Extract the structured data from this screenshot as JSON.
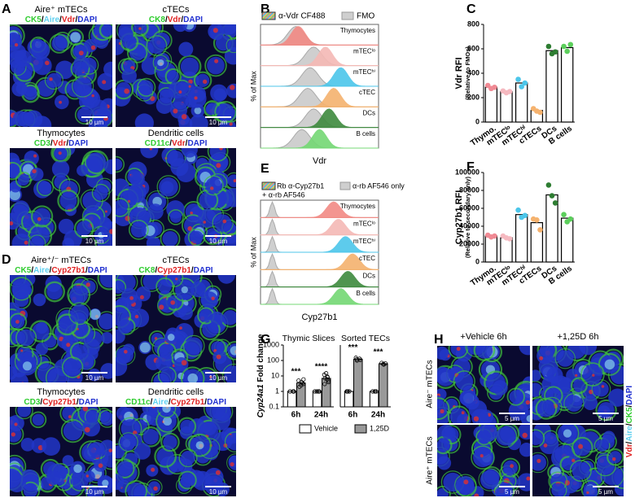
{
  "figure": {
    "panel_labels": [
      "A",
      "B",
      "C",
      "D",
      "E",
      "F",
      "G",
      "H"
    ],
    "panel_a": {
      "sep": "/",
      "images": [
        {
          "title": "Aire⁺ mTECs",
          "stains": [
            {
              "text": "CK5",
              "color": "#2ecc2e"
            },
            {
              "text": "Aire",
              "color": "#5fd0f0"
            },
            {
              "text": "Vdr",
              "color": "#e02020"
            },
            {
              "text": "DAPI",
              "color": "#2030d0"
            }
          ],
          "scale": "10 µm"
        },
        {
          "title": "cTECs",
          "stains": [
            {
              "text": "CK8",
              "color": "#2ecc2e"
            },
            {
              "text": "Vdr",
              "color": "#e02020"
            },
            {
              "text": "DAPI",
              "color": "#2030d0"
            }
          ],
          "scale": "10 µm"
        },
        {
          "title": "Thymocytes",
          "stains": [
            {
              "text": "CD3",
              "color": "#2ecc2e"
            },
            {
              "text": "Vdr",
              "color": "#e02020"
            },
            {
              "text": "DAPI",
              "color": "#2030d0"
            }
          ],
          "scale": "10 µm"
        },
        {
          "title": "Dendritic cells",
          "stains": [
            {
              "text": "CD11c",
              "color": "#2ecc2e"
            },
            {
              "text": "Vdr",
              "color": "#e02020"
            },
            {
              "text": "DAPI",
              "color": "#2030d0"
            }
          ],
          "scale": "10 µm"
        }
      ]
    },
    "panel_d": {
      "sep": "/",
      "images": [
        {
          "title": "Aire⁺/⁻ mTECs",
          "stains": [
            {
              "text": "CK5",
              "color": "#2ecc2e"
            },
            {
              "text": "Aire",
              "color": "#5fd0f0"
            },
            {
              "text": "Cyp27b1",
              "color": "#e02020"
            },
            {
              "text": "DAPI",
              "color": "#2030d0"
            }
          ],
          "scale": "10 µm"
        },
        {
          "title": "cTECs",
          "stains": [
            {
              "text": "CK8",
              "color": "#2ecc2e"
            },
            {
              "text": "Cyp27b1",
              "color": "#e02020"
            },
            {
              "text": "DAPI",
              "color": "#2030d0"
            }
          ],
          "scale": "10 µm"
        },
        {
          "title": "Thymocytes",
          "stains": [
            {
              "text": "CD3",
              "color": "#2ecc2e"
            },
            {
              "text": "Cyp27b1",
              "color": "#e02020"
            },
            {
              "text": "DAPI",
              "color": "#2030d0"
            }
          ],
          "scale": "10 µm"
        },
        {
          "title": "Dendritic cells",
          "stains": [
            {
              "text": "CD11c",
              "color": "#2ecc2e"
            },
            {
              "text": "Aire",
              "color": "#5fd0f0"
            },
            {
              "text": "Cyp27b1",
              "color": "#e02020"
            },
            {
              "text": "DAPI",
              "color": "#2030d0"
            }
          ],
          "scale": "10 µm"
        }
      ]
    },
    "panel_b": {
      "legend": [
        "α-Vdr CF488",
        "FMO"
      ],
      "rows": [
        "Thymocytes",
        "mTECˡᵒ",
        "mTECʰⁱ",
        "cTEC",
        "DCs",
        "B cells"
      ],
      "colors": [
        "#f28a84",
        "#f5b9b5",
        "#4cc6ea",
        "#f5b26e",
        "#3e8a3e",
        "#74d874"
      ],
      "ylabel": "% of Max",
      "xlabel": "Vdr"
    },
    "panel_e": {
      "legend": [
        "Rb α-Cyp27b1",
        "+ α-rb AF546",
        "α-rb AF546 only"
      ],
      "rows": [
        "Thymocytes",
        "mTECˡᵒ",
        "mTECʰⁱ",
        "cTEC",
        "DCs",
        "B cells"
      ],
      "colors": [
        "#f28a84",
        "#f5b9b5",
        "#4cc6ea",
        "#f5b26e",
        "#3e8a3e",
        "#74d874"
      ],
      "ylabel": "% of Max",
      "xlabel": "Cyp27b1"
    },
    "panel_h": {
      "columns": [
        "+Vehicle 6h",
        "+1,25D 6h"
      ],
      "rows": [
        "Aire⁻ mTECs",
        "Aire⁺ mTECs"
      ],
      "sep": "/",
      "stains": [
        {
          "text": "Vdr",
          "color": "#e02020"
        },
        {
          "text": "Aire",
          "color": "#5fd0f0"
        },
        {
          "text": "CK5",
          "color": "#2ecc2e"
        },
        {
          "text": "DAPI",
          "color": "#2030d0"
        }
      ],
      "scale": "5 µm"
    }
  },
  "chart_data": [
    {
      "type": "bar",
      "title": "Vdr RFI",
      "subtitle": "(Relative to FMOs)",
      "categories": [
        "Thymo.",
        "mTECˡᵒ",
        "mTECʰⁱ",
        "cTECs",
        "DCs",
        "B cells"
      ],
      "values": [
        285,
        250,
        320,
        95,
        585,
        610
      ],
      "points": [
        [
          300,
          275,
          285
        ],
        [
          255,
          240,
          250
        ],
        [
          350,
          290,
          320
        ],
        [
          110,
          90,
          80
        ],
        [
          620,
          560,
          575
        ],
        [
          620,
          580,
          635
        ]
      ],
      "colors": [
        "#f08a94",
        "#f5b9c0",
        "#4cc6ea",
        "#f5b26e",
        "#2e7d32",
        "#5ccf5c"
      ],
      "ylim": [
        0,
        800
      ],
      "yticks": [
        0,
        200,
        400,
        600,
        800
      ]
    },
    {
      "type": "bar",
      "title": "Cyp27b1 RFI",
      "subtitle": "(Relative to secondary only)",
      "categories": [
        "Thymo.",
        "mTECˡᵒ",
        "mTECʰⁱ",
        "cTECs",
        "DCs",
        "B cells"
      ],
      "values": [
        29000,
        27000,
        53000,
        44000,
        75000,
        49000
      ],
      "points": [
        [
          30000,
          28000,
          29000
        ],
        [
          29000,
          27000,
          26000
        ],
        [
          58000,
          50000,
          52000
        ],
        [
          48000,
          47000,
          36000
        ],
        [
          86000,
          74000,
          66000
        ],
        [
          53000,
          45000,
          48000
        ]
      ],
      "colors": [
        "#f08a94",
        "#f5b9c0",
        "#4cc6ea",
        "#f5b26e",
        "#2e7d32",
        "#5ccf5c"
      ],
      "ylim": [
        0,
        100000
      ],
      "yticks": [
        0,
        20000,
        40000,
        60000,
        80000,
        100000
      ]
    },
    {
      "type": "logbar",
      "title": "Thymic Slices",
      "ylabel_gene": "Cyp24a1",
      "ylabel": "Fold change",
      "categories": [
        "6h",
        "24h"
      ],
      "series": [
        {
          "name": "Vehicle",
          "color": "#ffffff",
          "values": [
            1,
            1
          ],
          "points": [
            [
              1,
              1,
              1,
              1,
              1
            ],
            [
              1,
              1,
              1,
              1,
              1
            ]
          ]
        },
        {
          "name": "1,25D",
          "color": "#999999",
          "values": [
            3.5,
            7
          ],
          "points": [
            [
              2,
              2.5,
              3,
              3.5,
              4,
              5,
              6
            ],
            [
              3,
              4,
              5,
              6,
              7,
              8,
              9,
              12,
              15
            ]
          ]
        }
      ],
      "significance": [
        "***",
        "****"
      ],
      "log_scale": true,
      "ylim": [
        0.1,
        1000
      ],
      "yticks": [
        0.1,
        1,
        10,
        100,
        1000
      ]
    },
    {
      "type": "logbar",
      "title": "Sorted TECs",
      "categories": [
        "6h",
        "24h"
      ],
      "series": [
        {
          "name": "Vehicle",
          "color": "#ffffff",
          "values": [
            1,
            1
          ],
          "points": [
            [
              1,
              1,
              1,
              1
            ],
            [
              1,
              1,
              1,
              1
            ]
          ]
        },
        {
          "name": "1,25D",
          "color": "#999999",
          "values": [
            120,
            62
          ],
          "points": [
            [
              100,
              110,
              120,
              130,
              150
            ],
            [
              55,
              60,
              65,
              70
            ]
          ]
        }
      ],
      "significance": [
        "***",
        "***"
      ],
      "log_scale": true,
      "ylim": [
        0.1,
        1000
      ]
    }
  ]
}
